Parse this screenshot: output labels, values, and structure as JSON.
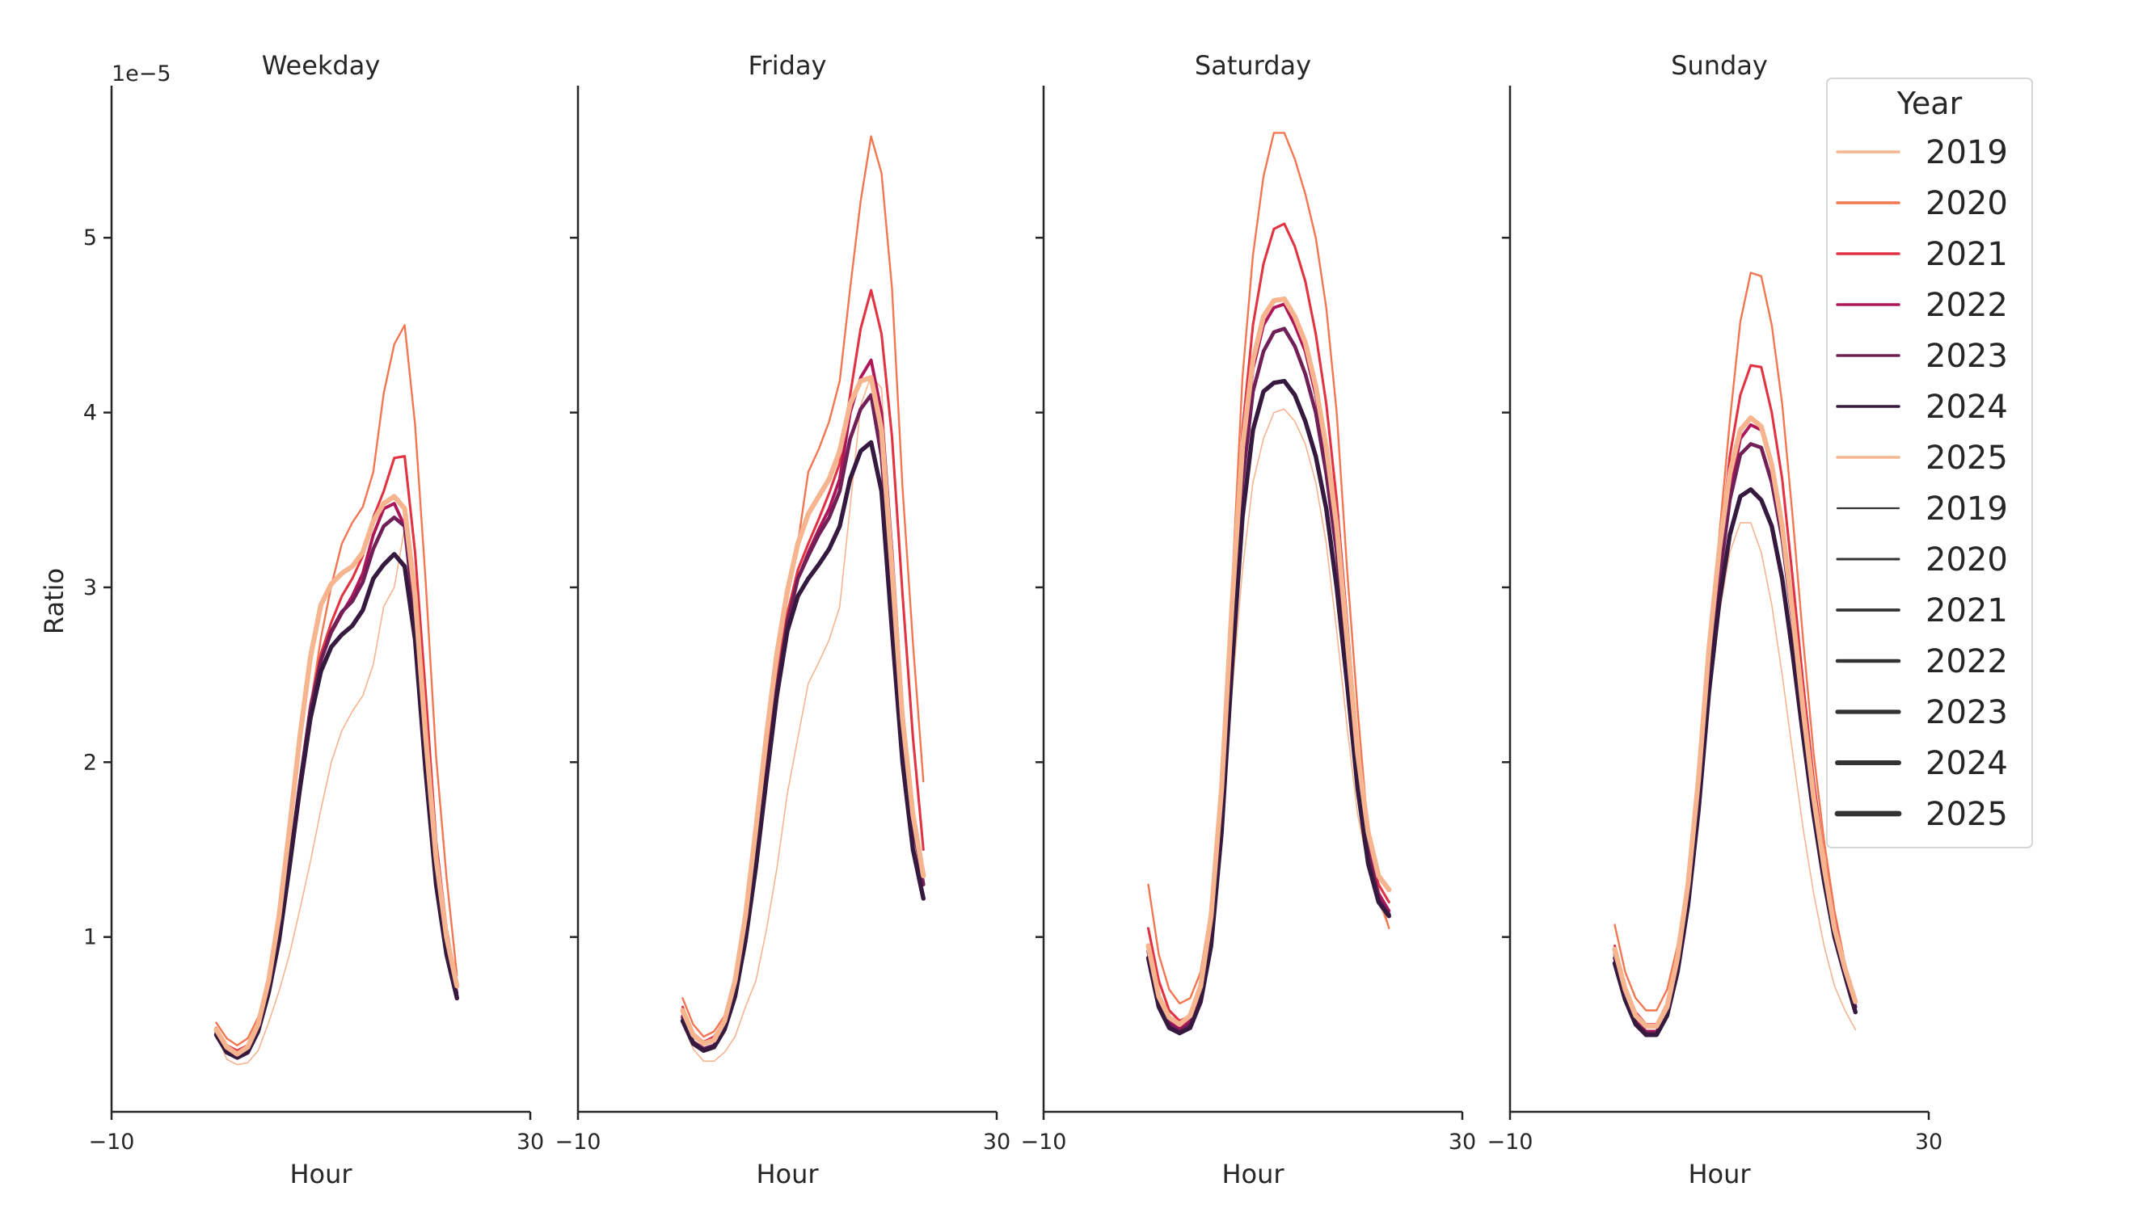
{
  "chart_data": [
    {
      "type": "line",
      "title": "Weekday",
      "xlabel": "Hour",
      "ylabel": "Ratio",
      "y_offset_label": "1e−5",
      "xlim": [
        -10,
        30
      ],
      "ylim": [
        0,
        5.87
      ],
      "xticks": [
        -10,
        30
      ],
      "yticks": [
        1,
        2,
        3,
        4,
        5
      ],
      "grid": false,
      "x": [
        0,
        1,
        2,
        3,
        4,
        5,
        6,
        7,
        8,
        9,
        10,
        11,
        12,
        13,
        14,
        15,
        16,
        17,
        18,
        19,
        20,
        21,
        22,
        23
      ],
      "series": [
        {
          "name": "2019",
          "values": [
            0.45,
            0.3,
            0.27,
            0.28,
            0.35,
            0.51,
            0.69,
            0.9,
            1.16,
            1.43,
            1.73,
            2.0,
            2.18,
            2.29,
            2.38,
            2.56,
            2.89,
            3.0,
            3.34,
            2.8,
            1.9,
            1.25,
            0.95,
            0.68
          ]
        },
        {
          "name": "2020",
          "values": [
            0.51,
            0.42,
            0.38,
            0.42,
            0.54,
            0.75,
            1.07,
            1.46,
            1.88,
            2.32,
            2.71,
            3.01,
            3.25,
            3.37,
            3.46,
            3.66,
            4.11,
            4.39,
            4.5,
            3.93,
            3.04,
            2.03,
            1.34,
            0.78
          ]
        },
        {
          "name": "2021",
          "values": [
            0.48,
            0.38,
            0.35,
            0.38,
            0.5,
            0.72,
            1.03,
            1.45,
            1.9,
            2.33,
            2.62,
            2.8,
            2.95,
            3.05,
            3.18,
            3.4,
            3.55,
            3.74,
            3.75,
            3.2,
            2.4,
            1.55,
            1.05,
            0.72
          ]
        },
        {
          "name": "2022",
          "values": [
            0.46,
            0.36,
            0.33,
            0.36,
            0.48,
            0.7,
            1.0,
            1.42,
            1.88,
            2.3,
            2.58,
            2.74,
            2.85,
            2.95,
            3.08,
            3.3,
            3.45,
            3.48,
            3.35,
            2.85,
            2.05,
            1.4,
            0.95,
            0.68
          ]
        },
        {
          "name": "2023",
          "values": [
            0.45,
            0.35,
            0.32,
            0.35,
            0.47,
            0.69,
            1.0,
            1.42,
            1.88,
            2.3,
            2.58,
            2.75,
            2.86,
            2.92,
            3.03,
            3.22,
            3.35,
            3.4,
            3.35,
            2.8,
            2.0,
            1.35,
            0.92,
            0.66
          ]
        },
        {
          "name": "2024",
          "values": [
            0.44,
            0.34,
            0.31,
            0.34,
            0.46,
            0.68,
            0.98,
            1.4,
            1.85,
            2.25,
            2.52,
            2.66,
            2.73,
            2.78,
            2.87,
            3.05,
            3.13,
            3.19,
            3.12,
            2.7,
            1.95,
            1.3,
            0.9,
            0.65
          ]
        },
        {
          "name": "2025",
          "values": [
            0.47,
            0.37,
            0.33,
            0.37,
            0.5,
            0.75,
            1.12,
            1.62,
            2.15,
            2.6,
            2.9,
            3.02,
            3.08,
            3.12,
            3.2,
            3.38,
            3.48,
            3.52,
            3.45,
            2.95,
            2.15,
            1.45,
            1.0,
            0.72
          ]
        }
      ]
    },
    {
      "type": "line",
      "title": "Friday",
      "xlabel": "Hour",
      "xlim": [
        -10,
        30
      ],
      "ylim": [
        0,
        5.87
      ],
      "xticks": [
        -10,
        30
      ],
      "yticks": [
        1,
        2,
        3,
        4,
        5
      ],
      "grid": false,
      "x": [
        0,
        1,
        2,
        3,
        4,
        5,
        6,
        7,
        8,
        9,
        10,
        11,
        12,
        13,
        14,
        15,
        16,
        17,
        18,
        19,
        20,
        21,
        22,
        23
      ],
      "series": [
        {
          "name": "2019",
          "values": [
            0.5,
            0.36,
            0.29,
            0.29,
            0.34,
            0.43,
            0.6,
            0.75,
            1.04,
            1.39,
            1.82,
            2.14,
            2.45,
            2.57,
            2.7,
            2.89,
            3.46,
            4.04,
            4.21,
            4.14,
            3.2,
            2.3,
            1.7,
            1.35
          ]
        },
        {
          "name": "2020",
          "values": [
            0.65,
            0.5,
            0.43,
            0.46,
            0.55,
            0.75,
            1.07,
            1.5,
            2.0,
            2.5,
            2.93,
            3.25,
            3.66,
            3.79,
            3.95,
            4.18,
            4.71,
            5.21,
            5.58,
            5.37,
            4.71,
            3.57,
            2.68,
            1.89
          ]
        },
        {
          "name": "2021",
          "values": [
            0.6,
            0.45,
            0.4,
            0.43,
            0.52,
            0.72,
            1.03,
            1.45,
            1.95,
            2.45,
            2.85,
            3.1,
            3.25,
            3.39,
            3.54,
            3.71,
            4.1,
            4.48,
            4.7,
            4.45,
            3.86,
            2.96,
            2.14,
            1.5
          ]
        },
        {
          "name": "2022",
          "values": [
            0.55,
            0.4,
            0.36,
            0.38,
            0.48,
            0.68,
            1.0,
            1.42,
            1.92,
            2.42,
            2.8,
            3.05,
            3.2,
            3.33,
            3.45,
            3.62,
            4.0,
            4.2,
            4.3,
            4.0,
            3.2,
            2.3,
            1.7,
            1.35
          ]
        },
        {
          "name": "2023",
          "values": [
            0.54,
            0.4,
            0.36,
            0.38,
            0.48,
            0.68,
            1.0,
            1.42,
            1.92,
            2.42,
            2.8,
            3.05,
            3.18,
            3.3,
            3.4,
            3.55,
            3.85,
            4.02,
            4.1,
            3.75,
            3.0,
            2.2,
            1.65,
            1.3
          ]
        },
        {
          "name": "2024",
          "values": [
            0.52,
            0.39,
            0.35,
            0.37,
            0.47,
            0.66,
            0.98,
            1.4,
            1.9,
            2.38,
            2.75,
            2.95,
            3.05,
            3.13,
            3.22,
            3.35,
            3.62,
            3.78,
            3.83,
            3.55,
            2.75,
            2.0,
            1.5,
            1.22
          ]
        },
        {
          "name": "2025",
          "values": [
            0.58,
            0.44,
            0.39,
            0.41,
            0.52,
            0.75,
            1.12,
            1.62,
            2.15,
            2.62,
            2.98,
            3.25,
            3.42,
            3.52,
            3.62,
            3.78,
            4.05,
            4.18,
            4.2,
            3.9,
            3.1,
            2.25,
            1.7,
            1.35
          ]
        }
      ]
    },
    {
      "type": "line",
      "title": "Saturday",
      "xlabel": "Hour",
      "xlim": [
        -10,
        30
      ],
      "ylim": [
        0,
        5.87
      ],
      "xticks": [
        -10,
        30
      ],
      "yticks": [
        1,
        2,
        3,
        4,
        5
      ],
      "grid": false,
      "x": [
        0,
        1,
        2,
        3,
        4,
        5,
        6,
        7,
        8,
        9,
        10,
        11,
        12,
        13,
        14,
        15,
        16,
        17,
        18,
        19,
        20,
        21,
        22,
        23
      ],
      "series": [
        {
          "name": "2019",
          "values": [
            0.9,
            0.62,
            0.52,
            0.48,
            0.5,
            0.65,
            1.0,
            1.6,
            2.4,
            3.1,
            3.6,
            3.85,
            4.0,
            4.02,
            3.95,
            3.82,
            3.6,
            3.25,
            2.75,
            2.2,
            1.7,
            1.4,
            1.2,
            1.05
          ]
        },
        {
          "name": "2020",
          "values": [
            1.3,
            0.9,
            0.7,
            0.62,
            0.65,
            0.8,
            1.17,
            1.9,
            3.0,
            4.2,
            4.9,
            5.35,
            5.6,
            5.6,
            5.45,
            5.25,
            5.0,
            4.6,
            4.0,
            3.1,
            2.3,
            1.6,
            1.25,
            1.05
          ]
        },
        {
          "name": "2021",
          "values": [
            1.05,
            0.75,
            0.58,
            0.52,
            0.55,
            0.72,
            1.1,
            1.8,
            2.9,
            3.9,
            4.5,
            4.85,
            5.05,
            5.08,
            4.95,
            4.75,
            4.45,
            4.05,
            3.5,
            2.8,
            2.1,
            1.55,
            1.3,
            1.2
          ]
        },
        {
          "name": "2022",
          "values": [
            0.95,
            0.65,
            0.52,
            0.48,
            0.52,
            0.68,
            1.05,
            1.75,
            2.8,
            3.7,
            4.25,
            4.5,
            4.6,
            4.62,
            4.5,
            4.35,
            4.1,
            3.75,
            3.3,
            2.65,
            2.0,
            1.5,
            1.25,
            1.15
          ]
        },
        {
          "name": "2023",
          "values": [
            0.92,
            0.63,
            0.5,
            0.46,
            0.5,
            0.66,
            1.02,
            1.7,
            2.7,
            3.6,
            4.12,
            4.35,
            4.46,
            4.48,
            4.38,
            4.22,
            4.0,
            3.65,
            3.2,
            2.6,
            1.95,
            1.48,
            1.22,
            1.13
          ]
        },
        {
          "name": "2024",
          "values": [
            0.88,
            0.6,
            0.48,
            0.45,
            0.48,
            0.63,
            0.95,
            1.6,
            2.55,
            3.4,
            3.9,
            4.12,
            4.17,
            4.18,
            4.1,
            3.95,
            3.75,
            3.45,
            3.0,
            2.45,
            1.85,
            1.42,
            1.2,
            1.12
          ]
        },
        {
          "name": "2025",
          "values": [
            0.95,
            0.66,
            0.54,
            0.5,
            0.55,
            0.72,
            1.12,
            1.85,
            2.9,
            3.8,
            4.3,
            4.55,
            4.64,
            4.65,
            4.55,
            4.4,
            4.15,
            3.8,
            3.35,
            2.7,
            2.05,
            1.6,
            1.35,
            1.27
          ]
        }
      ]
    },
    {
      "type": "line",
      "title": "Sunday",
      "xlabel": "Hour",
      "xlim": [
        -10,
        30
      ],
      "ylim": [
        0,
        5.87
      ],
      "xticks": [
        -10,
        30
      ],
      "yticks": [
        1,
        2,
        3,
        4,
        5
      ],
      "grid": false,
      "x": [
        0,
        1,
        2,
        3,
        4,
        5,
        6,
        7,
        8,
        9,
        10,
        11,
        12,
        13,
        14,
        15,
        16,
        17,
        18,
        19,
        20,
        21,
        22,
        23
      ],
      "series": [
        {
          "name": "2019",
          "values": [
            0.9,
            0.68,
            0.55,
            0.5,
            0.5,
            0.6,
            0.85,
            1.22,
            1.72,
            2.35,
            2.85,
            3.2,
            3.37,
            3.37,
            3.2,
            2.9,
            2.5,
            2.05,
            1.62,
            1.25,
            0.95,
            0.72,
            0.58,
            0.47
          ]
        },
        {
          "name": "2020",
          "values": [
            1.07,
            0.8,
            0.65,
            0.58,
            0.58,
            0.7,
            0.95,
            1.35,
            1.9,
            2.7,
            3.3,
            3.95,
            4.52,
            4.8,
            4.78,
            4.5,
            4.05,
            3.4,
            2.7,
            2.05,
            1.55,
            1.15,
            0.85,
            0.62
          ]
        },
        {
          "name": "2021",
          "values": [
            0.95,
            0.72,
            0.57,
            0.5,
            0.5,
            0.62,
            0.88,
            1.28,
            1.85,
            2.62,
            3.2,
            3.75,
            4.1,
            4.27,
            4.26,
            4.0,
            3.62,
            3.05,
            2.45,
            1.9,
            1.45,
            1.1,
            0.82,
            0.6
          ]
        },
        {
          "name": "2022",
          "values": [
            0.9,
            0.68,
            0.52,
            0.46,
            0.46,
            0.58,
            0.84,
            1.24,
            1.8,
            2.55,
            3.1,
            3.55,
            3.85,
            3.93,
            3.9,
            3.7,
            3.35,
            2.85,
            2.3,
            1.8,
            1.4,
            1.05,
            0.8,
            0.6
          ]
        },
        {
          "name": "2023",
          "values": [
            0.88,
            0.66,
            0.51,
            0.45,
            0.45,
            0.57,
            0.83,
            1.22,
            1.78,
            2.5,
            3.05,
            3.5,
            3.76,
            3.82,
            3.8,
            3.6,
            3.28,
            2.8,
            2.27,
            1.78,
            1.38,
            1.04,
            0.8,
            0.6
          ]
        },
        {
          "name": "2024",
          "values": [
            0.85,
            0.64,
            0.5,
            0.44,
            0.44,
            0.55,
            0.8,
            1.18,
            1.72,
            2.4,
            2.92,
            3.3,
            3.52,
            3.56,
            3.5,
            3.35,
            3.05,
            2.62,
            2.15,
            1.7,
            1.32,
            1.0,
            0.78,
            0.57
          ]
        },
        {
          "name": "2025",
          "values": [
            0.93,
            0.7,
            0.55,
            0.49,
            0.49,
            0.6,
            0.88,
            1.3,
            1.9,
            2.65,
            3.22,
            3.65,
            3.9,
            3.97,
            3.92,
            3.7,
            3.35,
            2.85,
            2.3,
            1.8,
            1.4,
            1.05,
            0.82,
            0.63
          ]
        }
      ]
    }
  ],
  "legend": {
    "title": "Year",
    "placement": "right",
    "hue_entries": [
      "2019",
      "2020",
      "2021",
      "2022",
      "2023",
      "2024",
      "2025"
    ],
    "size_entries": [
      "2019",
      "2020",
      "2021",
      "2022",
      "2023",
      "2024",
      "2025"
    ],
    "colors": {
      "2019": "#f6b48f",
      "2020": "#f37651",
      "2021": "#e13342",
      "2022": "#ad1759",
      "2023": "#701f57",
      "2024": "#35193e",
      "2025": "#f6b48f"
    },
    "size_color": "#333333"
  }
}
